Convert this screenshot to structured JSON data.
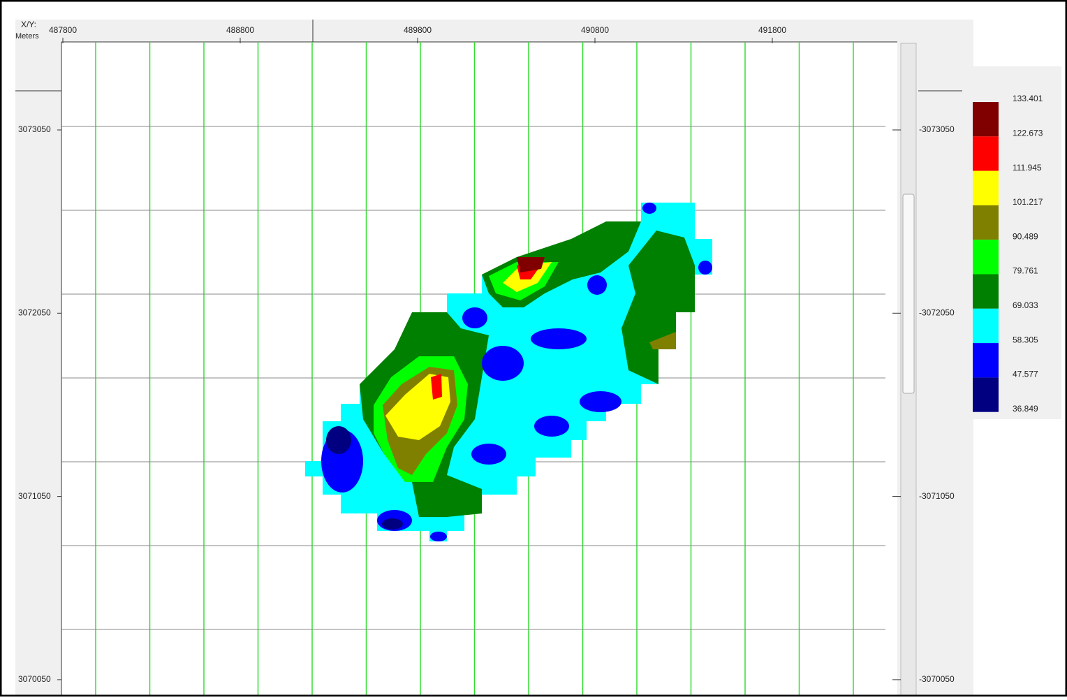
{
  "axes": {
    "corner_label": "X/Y:",
    "units": "Meters",
    "x_labels": [
      "487800",
      "488800",
      "489800",
      "490800",
      "491800"
    ],
    "y_labels_left": [
      "3073050",
      "3072050",
      "3071050",
      "3070050"
    ],
    "y_labels_right": [
      "-3073050",
      "-3072050",
      "-3071050",
      "-3070050"
    ]
  },
  "legend": {
    "levels": [
      "133.401",
      "122.673",
      "111.945",
      "101.217",
      "90.489",
      "79.761",
      "69.033",
      "58.305",
      "47.577",
      "36.849"
    ],
    "colors": [
      "#800000",
      "#ff0000",
      "#ffff00",
      "#808000",
      "#00ff00",
      "#008000",
      "#00ffff",
      "#0000ff",
      "#000080"
    ]
  }
}
